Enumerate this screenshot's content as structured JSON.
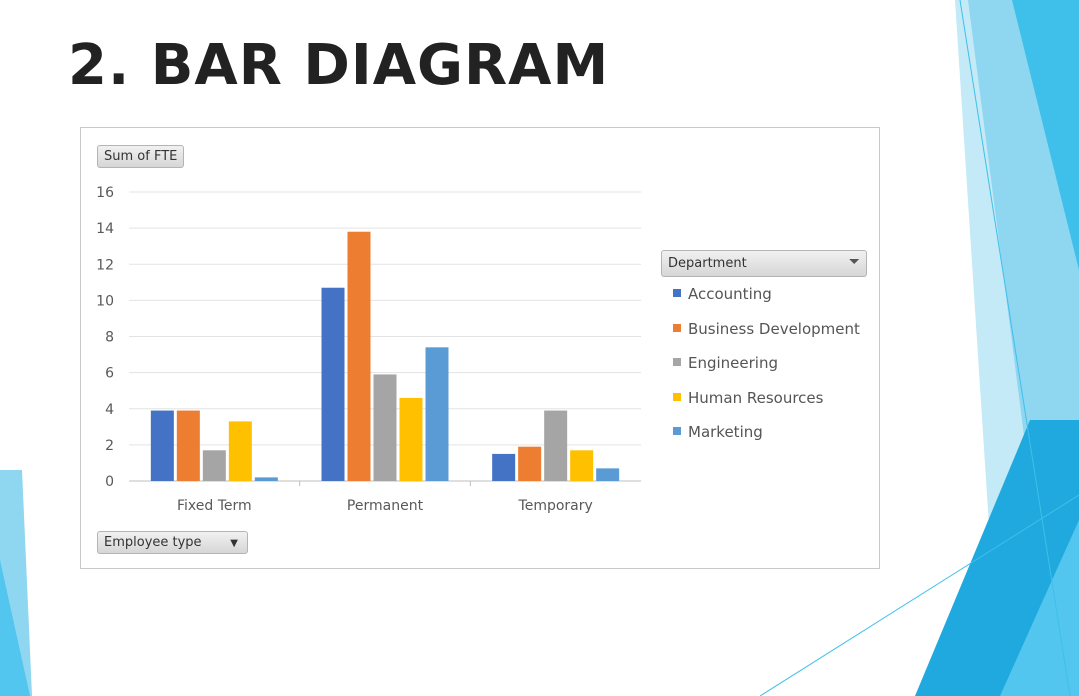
{
  "slide": {
    "title": "2. BAR DIAGRAM"
  },
  "colors": {
    "accent_dark": "#1fa9de",
    "accent_light": "#8fd6f0",
    "accent_pale": "#c4e9f7"
  },
  "pivot": {
    "value_field_label": "Sum of FTE",
    "row_field_label": "Employee type",
    "legend_field_label": "Department"
  },
  "chart_data": {
    "type": "bar",
    "categories": [
      "Fixed Term",
      "Permanent",
      "Temporary"
    ],
    "series": [
      {
        "name": "Accounting",
        "color": "#4472c4",
        "values": [
          3.9,
          10.7,
          1.5
        ]
      },
      {
        "name": "Business Development",
        "color": "#ed7d31",
        "values": [
          3.9,
          13.8,
          1.9
        ]
      },
      {
        "name": "Engineering",
        "color": "#a5a5a5",
        "values": [
          1.7,
          5.9,
          3.9
        ]
      },
      {
        "name": "Human Resources",
        "color": "#ffc000",
        "values": [
          3.3,
          4.6,
          1.7
        ]
      },
      {
        "name": "Marketing",
        "color": "#5b9bd5",
        "values": [
          0.2,
          7.4,
          0.7
        ]
      }
    ],
    "y_ticks": [
      "0",
      "2",
      "4",
      "6",
      "8",
      "10",
      "12",
      "14",
      "16"
    ],
    "ylim": [
      0,
      16
    ],
    "grid": true,
    "legend_position": "right"
  }
}
